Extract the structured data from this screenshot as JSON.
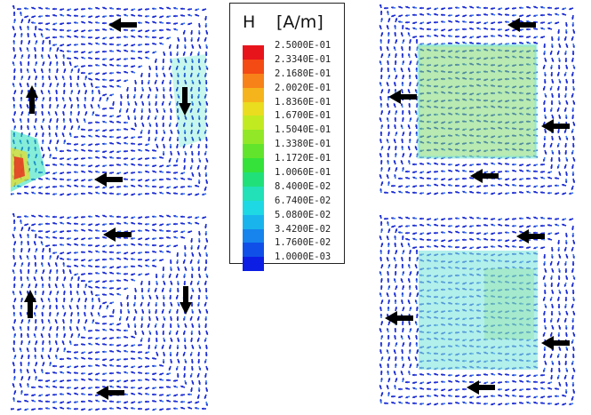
{
  "legend": {
    "symbol": "H",
    "unit": "[A/m]",
    "labels": [
      "2.5000E-01",
      "2.3340E-01",
      "2.1680E-01",
      "2.0020E-01",
      "1.8360E-01",
      "1.6700E-01",
      "1.5040E-01",
      "1.3380E-01",
      "1.1720E-01",
      "1.0060E-01",
      "8.4000E-02",
      "6.7400E-02",
      "5.0800E-02",
      "3.4200E-02",
      "1.7600E-02",
      "1.0000E-03"
    ],
    "colors": [
      "#e8141c",
      "#f44a14",
      "#f7821a",
      "#f6b41c",
      "#eadc1e",
      "#c2ea20",
      "#92e826",
      "#62e42c",
      "#34e23a",
      "#20e07a",
      "#22e0b8",
      "#1ed8e4",
      "#1ab4ec",
      "#1684ec",
      "#1050e8",
      "#0c1ee4"
    ]
  },
  "field_colors": {
    "arrow_dark": "#1a2cd4",
    "arrow_light": "#3a78ec",
    "inner_cyan": "#7ee6de",
    "inner_green": "#7ed872",
    "hotspot": [
      "#e8281c",
      "#f6a01e",
      "#eadc1e",
      "#22e0b8"
    ],
    "direction_marker": "#000000"
  },
  "panels": [
    {
      "name": "top-left",
      "inner_fill": "none",
      "markers": [
        "arrow-left-top",
        "arrow-up-left",
        "arrow-down-right",
        "arrow-left-bottom"
      ]
    },
    {
      "name": "bottom-left",
      "inner_fill": "none",
      "markers": [
        "arrow-left-top",
        "arrow-up-left",
        "arrow-down-right",
        "arrow-left-bottom"
      ]
    },
    {
      "name": "top-right",
      "inner_fill": "green-cyan",
      "markers": [
        "arrow-left-top",
        "arrow-left-left",
        "arrow-left-right",
        "arrow-left-bottom"
      ]
    },
    {
      "name": "bottom-right",
      "inner_fill": "cyan",
      "markers": [
        "arrow-left-top",
        "arrow-left-left",
        "arrow-left-right",
        "arrow-left-bottom"
      ]
    }
  ]
}
